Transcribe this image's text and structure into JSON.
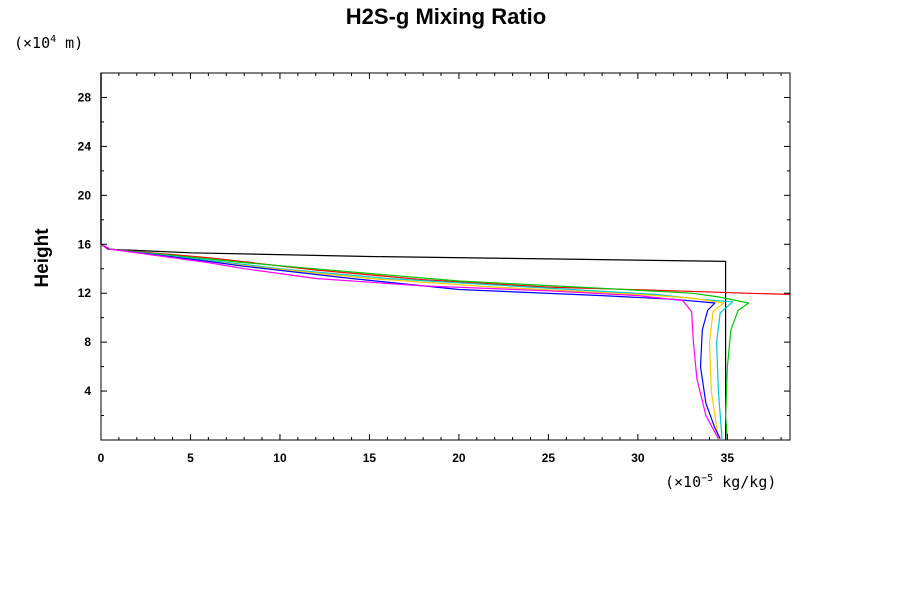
{
  "chart_data": {
    "type": "line",
    "title": "H2S-g Mixing Ratio",
    "ylabel": "Height",
    "y_unit": {
      "prefix": "(×10",
      "exp": "4",
      "suffix": " m)"
    },
    "x_unit": {
      "prefix": "(×10",
      "exp": "−5",
      "suffix": " kg/kg)"
    },
    "xlim": [
      0,
      38.5
    ],
    "ylim": [
      0,
      30
    ],
    "xticks": [
      0,
      5,
      10,
      15,
      20,
      25,
      30,
      35
    ],
    "yticks": [
      4,
      8,
      12,
      16,
      20,
      24,
      28
    ],
    "xticks_minor": [
      1,
      2,
      3,
      4,
      6,
      7,
      8,
      9,
      11,
      12,
      13,
      14,
      16,
      17,
      18,
      19,
      21,
      22,
      23,
      24,
      26,
      27,
      28,
      29,
      31,
      32,
      33,
      34,
      36,
      37,
      38
    ],
    "yticks_minor": [
      2,
      6,
      10,
      14,
      18,
      22,
      26
    ],
    "grid": false,
    "legend": "none",
    "series": [
      {
        "color": "#000000",
        "points": [
          [
            0,
            30
          ],
          [
            0,
            16
          ],
          [
            0.4,
            15.6
          ],
          [
            5,
            15.3
          ],
          [
            15,
            15.0
          ],
          [
            25,
            14.8
          ],
          [
            34.9,
            14.6
          ],
          [
            34.9,
            0
          ]
        ]
      },
      {
        "color": "#ff0000",
        "points": [
          [
            0,
            30
          ],
          [
            0,
            16
          ],
          [
            0.5,
            15.6
          ],
          [
            6,
            14.9
          ],
          [
            12,
            13.9
          ],
          [
            18,
            13.1
          ],
          [
            25,
            12.5
          ],
          [
            32,
            12.2
          ],
          [
            36,
            12.0
          ],
          [
            38.5,
            11.9
          ]
        ]
      },
      {
        "color": "#00c800",
        "points": [
          [
            0,
            30
          ],
          [
            0,
            16
          ],
          [
            0.5,
            15.6
          ],
          [
            6,
            14.8
          ],
          [
            8,
            14.5
          ],
          [
            13.5,
            13.8
          ],
          [
            20,
            13.0
          ],
          [
            28,
            12.4
          ],
          [
            33,
            12.0
          ],
          [
            34.5,
            11.7
          ],
          [
            36.2,
            11.2
          ],
          [
            35.6,
            10.6
          ],
          [
            35.2,
            9
          ],
          [
            35.0,
            6
          ],
          [
            34.9,
            2
          ],
          [
            35.0,
            0.1
          ]
        ]
      },
      {
        "color": "#00c8c8",
        "points": [
          [
            0,
            30
          ],
          [
            0,
            16
          ],
          [
            0.5,
            15.6
          ],
          [
            6,
            14.7
          ],
          [
            10,
            14.0
          ],
          [
            16,
            13.2
          ],
          [
            24,
            12.5
          ],
          [
            31,
            11.9
          ],
          [
            33.5,
            11.5
          ],
          [
            35.3,
            11.3
          ],
          [
            34.6,
            10.4
          ],
          [
            34.4,
            8
          ],
          [
            34.5,
            4
          ],
          [
            34.7,
            0.1
          ]
        ]
      },
      {
        "color": "#ffc800",
        "points": [
          [
            0,
            30
          ],
          [
            0,
            16
          ],
          [
            0.5,
            15.6
          ],
          [
            6,
            14.6
          ],
          [
            9,
            14.1
          ],
          [
            15,
            13.2
          ],
          [
            22,
            12.5
          ],
          [
            30,
            11.9
          ],
          [
            33,
            11.6
          ],
          [
            34.8,
            11.2
          ],
          [
            34.2,
            10.5
          ],
          [
            34.0,
            8
          ],
          [
            34.1,
            4
          ],
          [
            34.5,
            0.1
          ]
        ]
      },
      {
        "color": "#0000ff",
        "points": [
          [
            0,
            30
          ],
          [
            0,
            16
          ],
          [
            0.5,
            15.6
          ],
          [
            6,
            14.6
          ],
          [
            8,
            14.2
          ],
          [
            14,
            13.2
          ],
          [
            20,
            12.3
          ],
          [
            28,
            11.8
          ],
          [
            32,
            11.5
          ],
          [
            34.3,
            11.2
          ],
          [
            33.9,
            10.6
          ],
          [
            33.6,
            9
          ],
          [
            33.5,
            6
          ],
          [
            33.8,
            3
          ],
          [
            34.3,
            1
          ],
          [
            34.6,
            0.1
          ]
        ]
      },
      {
        "color": "#ff00ff",
        "points": [
          [
            0,
            30
          ],
          [
            0,
            16
          ],
          [
            0.5,
            15.6
          ],
          [
            6,
            14.5
          ],
          [
            8,
            14.0
          ],
          [
            12,
            13.2
          ],
          [
            18,
            12.6
          ],
          [
            25,
            12.2
          ],
          [
            30,
            11.8
          ],
          [
            32.5,
            11.4
          ],
          [
            33.0,
            10.5
          ],
          [
            33.1,
            8
          ],
          [
            33.3,
            5
          ],
          [
            33.8,
            2
          ],
          [
            34.5,
            0.1
          ]
        ]
      }
    ]
  }
}
